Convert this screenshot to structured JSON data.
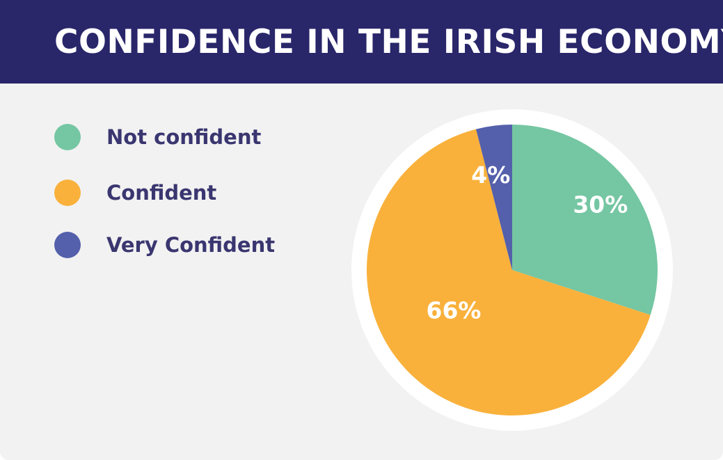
{
  "header": {
    "title": "CONFIDENCE IN THE IRISH ECONOMY"
  },
  "colors": {
    "header_bg": "#29266a",
    "card_bg": "#f2f2f2",
    "legend_text": "#3a3670",
    "label_text": "#ffffff"
  },
  "legend": {
    "items": [
      {
        "label": "Not confident",
        "color": "#75c6a3"
      },
      {
        "label": "Confident",
        "color": "#f9b13b"
      },
      {
        "label": "Very Confident",
        "color": "#5460ab"
      }
    ]
  },
  "chart_data": {
    "type": "pie",
    "title": "CONFIDENCE IN THE IRISH ECONOMY",
    "categories": [
      "Not confident",
      "Confident",
      "Very Confident"
    ],
    "values": [
      30,
      66,
      4
    ],
    "value_labels": [
      "30%",
      "66%",
      "4%"
    ],
    "colors": [
      "#75c6a3",
      "#f9b13b",
      "#5460ab"
    ],
    "start_angle": "12 o'clock",
    "direction": "clockwise",
    "legend_position": "left"
  }
}
